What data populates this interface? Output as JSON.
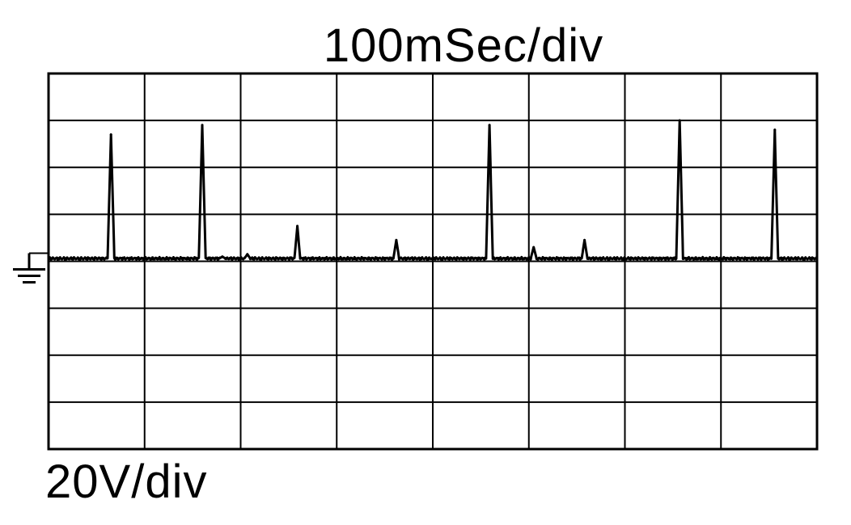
{
  "labels": {
    "timebase": "100mSec/div",
    "volts_per_div": "20V/div"
  },
  "chart_data": {
    "type": "line",
    "title": "",
    "xlabel": "100mSec/div",
    "ylabel": "20V/div",
    "x_unit": "ms",
    "y_unit": "V",
    "xlim": [
      0,
      800
    ],
    "ylim": [
      -80,
      80
    ],
    "grid": true,
    "ground_marker": "left",
    "baseline": 0,
    "peaks": [
      {
        "t": 65,
        "v": 54
      },
      {
        "t": 160,
        "v": 58
      },
      {
        "t": 181,
        "v": 2
      },
      {
        "t": 207,
        "v": 3
      },
      {
        "t": 259,
        "v": 15
      },
      {
        "t": 362,
        "v": 9
      },
      {
        "t": 459,
        "v": 58
      },
      {
        "t": 505,
        "v": 6
      },
      {
        "t": 558,
        "v": 9
      },
      {
        "t": 657,
        "v": 60
      },
      {
        "t": 756,
        "v": 56
      }
    ]
  },
  "colors": {
    "trace": "#000000",
    "grid": "#000000",
    "background": "#ffffff"
  }
}
